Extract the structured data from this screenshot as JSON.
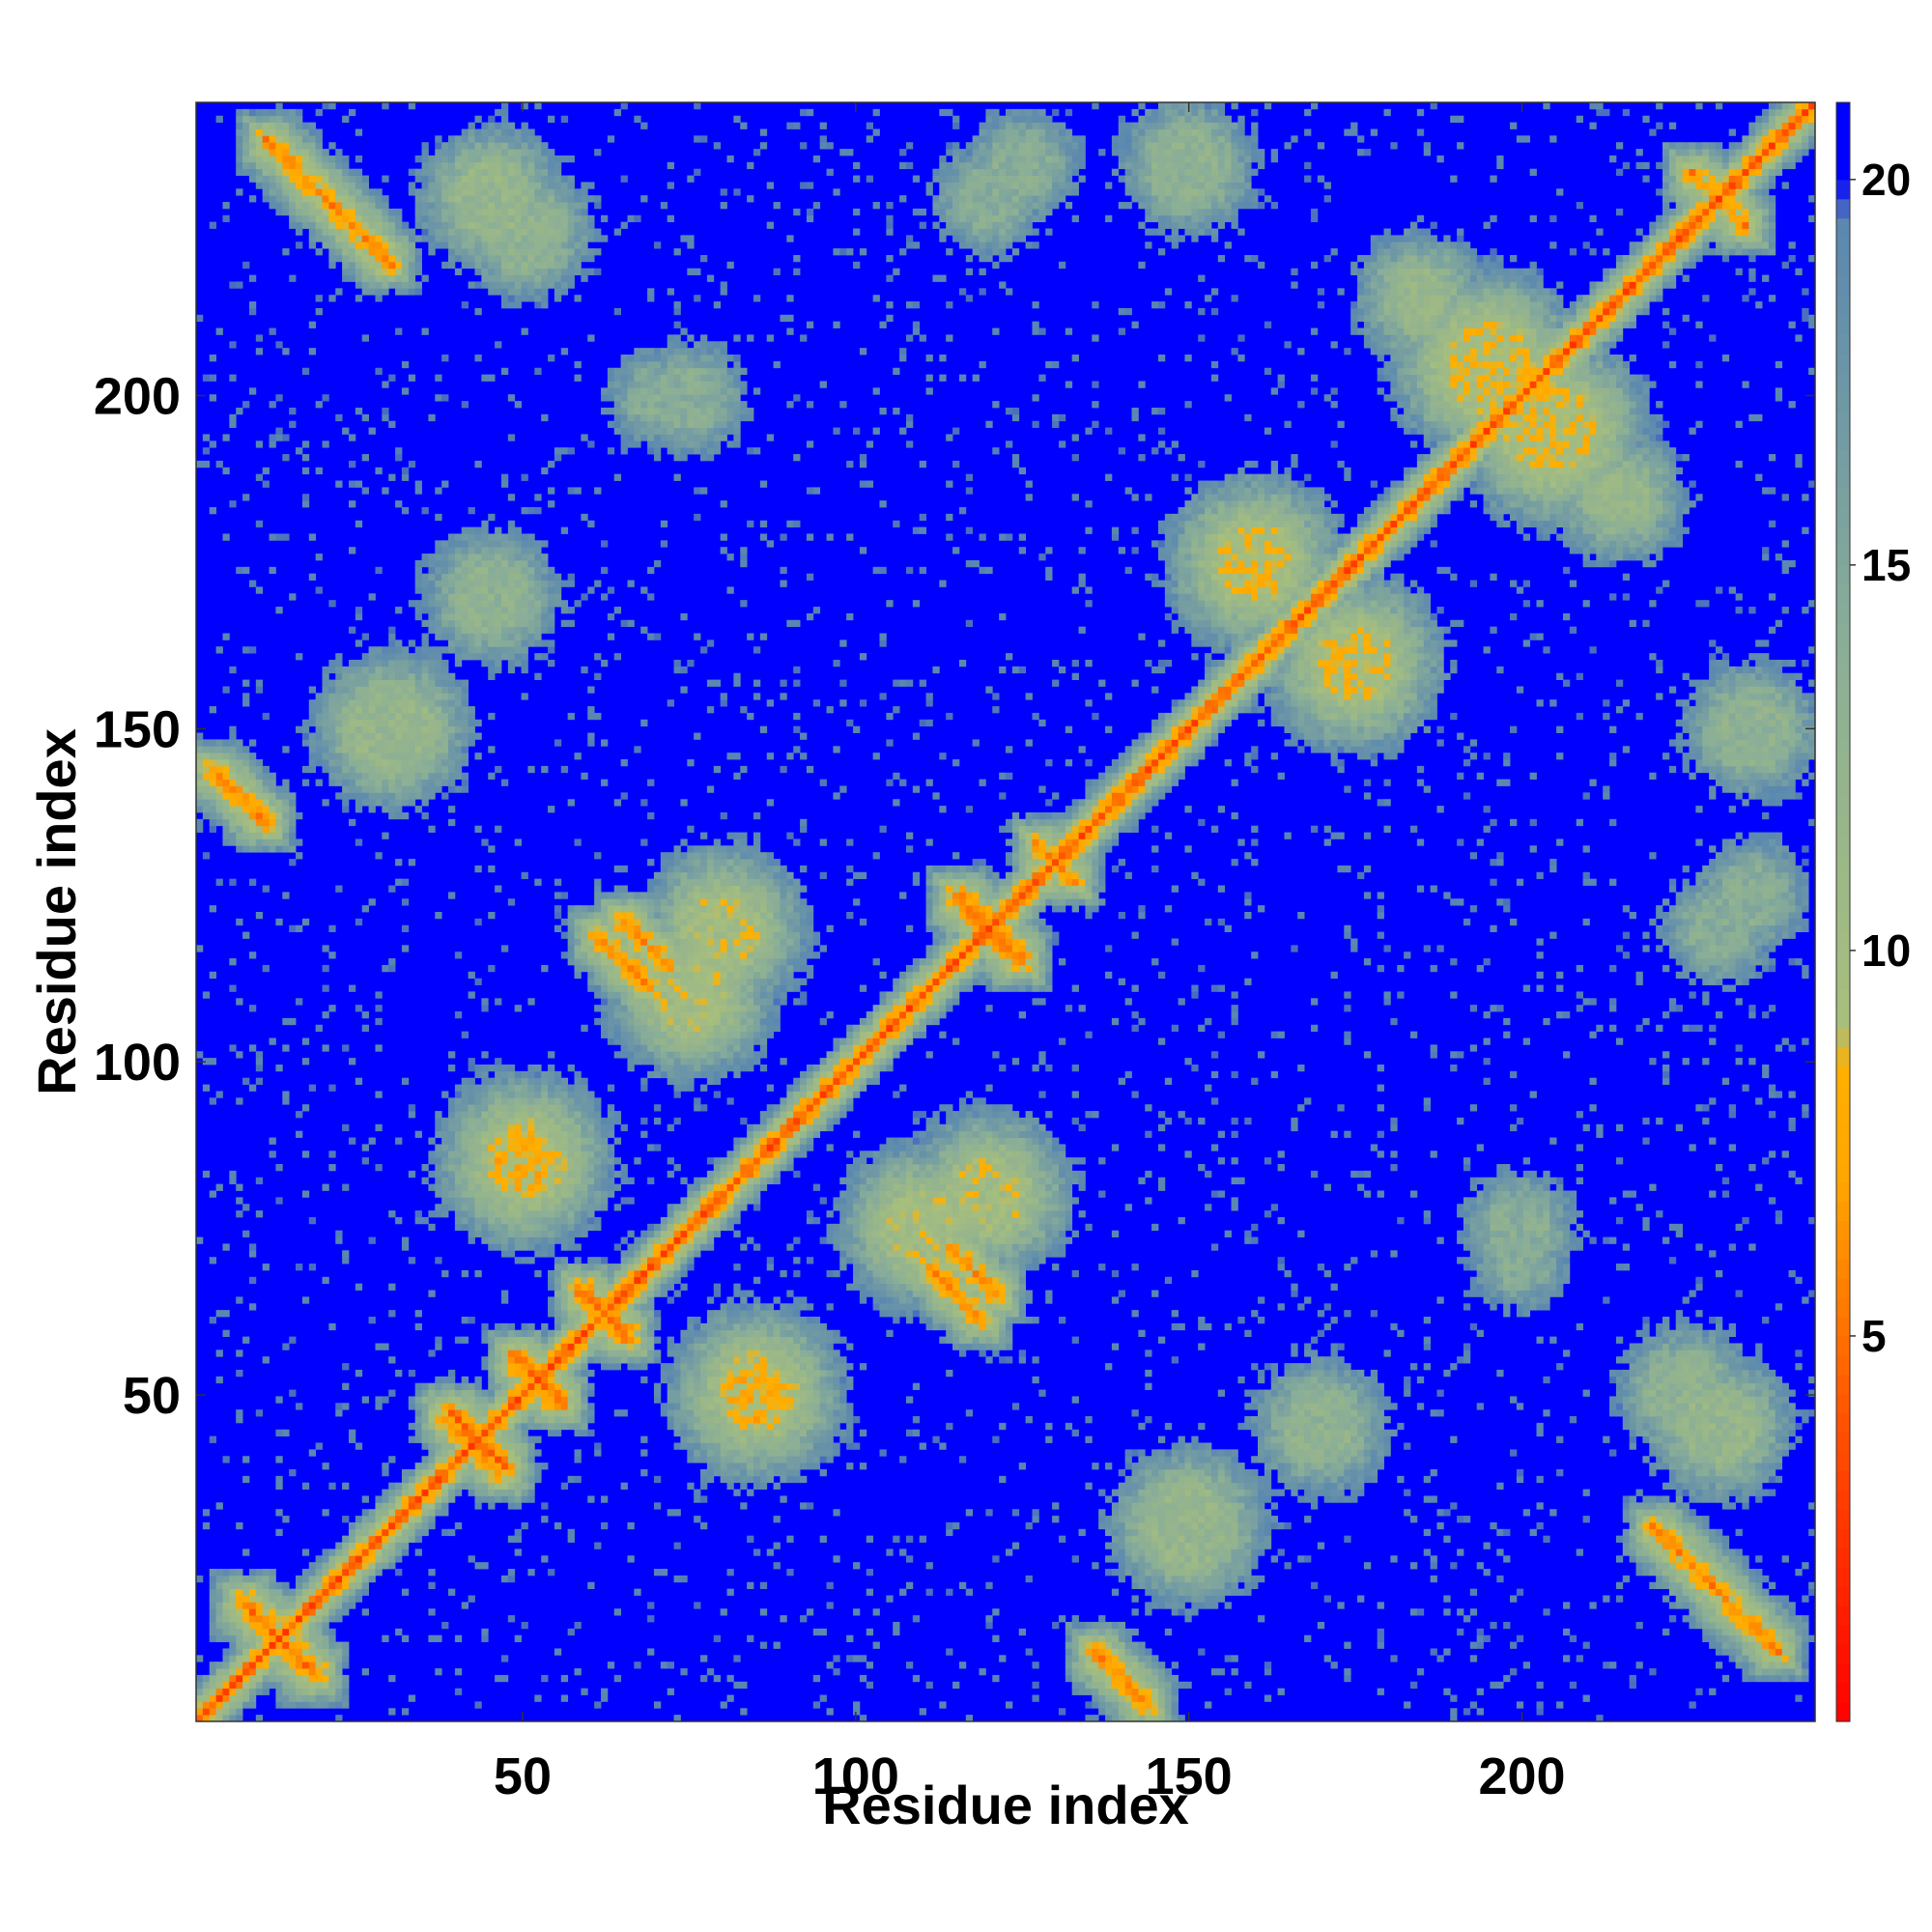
{
  "chart_data": {
    "type": "heatmap",
    "title": "",
    "xlabel": "Residue index",
    "ylabel": "Residue index",
    "n_residues": 244,
    "xlim": [
      1,
      244
    ],
    "ylim": [
      1,
      244
    ],
    "x_ticks": [
      50,
      100,
      150,
      200
    ],
    "y_ticks": [
      50,
      100,
      150,
      200
    ],
    "x_tick_labels": [
      "50",
      "100",
      "150",
      "200"
    ],
    "y_tick_labels": [
      "50",
      "100",
      "150",
      "200"
    ],
    "colorbar": {
      "min": 0,
      "max": 21,
      "ticks": [
        5,
        10,
        15,
        20
      ],
      "tick_labels": [
        "5",
        "10",
        "15",
        "20"
      ],
      "color_stops": [
        {
          "value": 0,
          "color": "#ff0000"
        },
        {
          "value": 4,
          "color": "#ff5500"
        },
        {
          "value": 7,
          "color": "#ffa500"
        },
        {
          "value": 8.5,
          "color": "#ffb000"
        },
        {
          "value": 9,
          "color": "#a8bf7c"
        },
        {
          "value": 14,
          "color": "#8aae97"
        },
        {
          "value": 19.5,
          "color": "#5a87b0"
        },
        {
          "value": 20,
          "color": "#0000ff"
        },
        {
          "value": 21,
          "color": "#0000ff"
        }
      ]
    },
    "colors": {
      "background": "#0000ff",
      "diagonal": "#ff0000",
      "near_contact": "#ffa500",
      "mid_distance": "#a8bf7c",
      "far_edge": "#6b8fb5"
    },
    "symmetric": true,
    "contact_features": [
      {
        "type": "diagonal",
        "from": 1,
        "to": 244,
        "value": 3.8
      },
      {
        "type": "antiparallel",
        "center": [
          13,
          13
        ],
        "length": 16,
        "value": 5
      },
      {
        "type": "antiparallel",
        "center": [
          43,
          43
        ],
        "length": 12,
        "value": 5
      },
      {
        "type": "antiparallel",
        "center": [
          52,
          52
        ],
        "length": 10,
        "value": 5
      },
      {
        "type": "antiparallel",
        "center": [
          62,
          62
        ],
        "length": 10,
        "value": 5
      },
      {
        "type": "antiparallel",
        "center": [
          120,
          120
        ],
        "length": 14,
        "value": 5
      },
      {
        "type": "antiparallel",
        "center": [
          130,
          130
        ],
        "length": 8,
        "value": 6
      },
      {
        "type": "antiparallel",
        "center": [
          230,
          230
        ],
        "length": 12,
        "value": 6
      },
      {
        "type": "antiparallel",
        "center": [
          232,
          18
        ],
        "length": 20,
        "value": 6
      },
      {
        "type": "antiparallel",
        "center": [
          140,
          7
        ],
        "length": 12,
        "value": 6
      },
      {
        "type": "antiparallel",
        "center": [
          115,
          65
        ],
        "length": 12,
        "value": 6
      },
      {
        "type": "antiparallel",
        "center": [
          68,
          118
        ],
        "length": 10,
        "value": 6
      },
      {
        "type": "antiparallel",
        "center": [
          225,
          25
        ],
        "length": 14,
        "value": 6
      },
      {
        "type": "antiparallel",
        "center": [
          40,
          44
        ],
        "length": 8,
        "value": 7
      },
      {
        "type": "cluster",
        "center": [
          205,
          195
        ],
        "radius": 12,
        "value": 9
      },
      {
        "type": "cluster",
        "center": [
          175,
          160
        ],
        "radius": 10,
        "value": 9
      },
      {
        "type": "cluster",
        "center": [
          85,
          50
        ],
        "radius": 8,
        "value": 8
      },
      {
        "type": "cluster",
        "center": [
          110,
          75
        ],
        "radius": 10,
        "value": 10
      },
      {
        "type": "cluster",
        "center": [
          80,
          120
        ],
        "radius": 10,
        "value": 10
      },
      {
        "type": "cluster",
        "center": [
          200,
          75
        ],
        "radius": 8,
        "value": 14
      },
      {
        "type": "cluster",
        "center": [
          230,
          120
        ],
        "radius": 8,
        "value": 14
      },
      {
        "type": "cluster",
        "center": [
          230,
          45
        ],
        "radius": 10,
        "value": 12
      },
      {
        "type": "cluster",
        "center": [
          150,
          30
        ],
        "radius": 12,
        "value": 12
      },
      {
        "type": "cluster",
        "center": [
          50,
          225
        ],
        "radius": 10,
        "value": 13
      },
      {
        "type": "cluster",
        "center": [
          125,
          235
        ],
        "radius": 8,
        "value": 14
      },
      {
        "type": "cluster",
        "center": [
          70,
          200
        ],
        "radius": 6,
        "value": 14
      },
      {
        "type": "cluster",
        "center": [
          45,
          170
        ],
        "radius": 10,
        "value": 13
      },
      {
        "type": "cluster",
        "center": [
          150,
          235
        ],
        "radius": 10,
        "value": 13
      },
      {
        "type": "cluster",
        "center": [
          185,
          215
        ],
        "radius": 8,
        "value": 12
      }
    ]
  }
}
